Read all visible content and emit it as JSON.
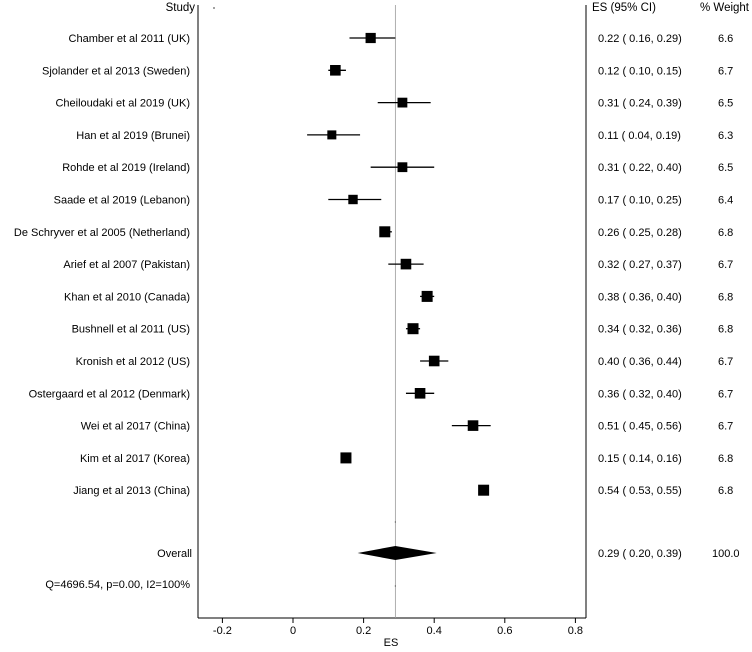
{
  "chart_data": {
    "type": "forest",
    "xlabel": "ES",
    "xlim": [
      -0.25,
      0.8
    ],
    "xticks": [
      -0.2,
      0,
      0.2,
      0.4,
      0.6,
      0.8
    ],
    "xtick_labels": [
      "-0.2",
      "0",
      "0.2",
      "0.4",
      "0.6",
      "0.8"
    ],
    "headers": {
      "study": "Study",
      "es": "ES (95% CI)",
      "weight": "% Weight"
    },
    "reference_line": 0.29,
    "studies": [
      {
        "label": "Chamber et al 2011 (UK)",
        "es": 0.22,
        "lo": 0.16,
        "hi": 0.29,
        "es_text": "0.22",
        "lo_text": "0.16",
        "hi_text": "0.29",
        "weight": 6.6,
        "weight_text": "6.6"
      },
      {
        "label": "Sjolander et al 2013 (Sweden)",
        "es": 0.12,
        "lo": 0.1,
        "hi": 0.15,
        "es_text": "0.12",
        "lo_text": "0.10",
        "hi_text": "0.15",
        "weight": 6.7,
        "weight_text": "6.7"
      },
      {
        "label": "Cheiloudaki et al 2019 (UK)",
        "es": 0.31,
        "lo": 0.24,
        "hi": 0.39,
        "es_text": "0.31",
        "lo_text": "0.24",
        "hi_text": "0.39",
        "weight": 6.5,
        "weight_text": "6.5"
      },
      {
        "label": "Han et al 2019 (Brunei)",
        "es": 0.11,
        "lo": 0.04,
        "hi": 0.19,
        "es_text": "0.11",
        "lo_text": "0.04",
        "hi_text": "0.19",
        "weight": 6.3,
        "weight_text": "6.3"
      },
      {
        "label": "Rohde et al 2019 (Ireland)",
        "es": 0.31,
        "lo": 0.22,
        "hi": 0.4,
        "es_text": "0.31",
        "lo_text": "0.22",
        "hi_text": "0.40",
        "weight": 6.5,
        "weight_text": "6.5"
      },
      {
        "label": "Saade et al 2019 (Lebanon)",
        "es": 0.17,
        "lo": 0.1,
        "hi": 0.25,
        "es_text": "0.17",
        "lo_text": "0.10",
        "hi_text": "0.25",
        "weight": 6.4,
        "weight_text": "6.4"
      },
      {
        "label": "De Schryver et al 2005 (Netherland)",
        "es": 0.26,
        "lo": 0.25,
        "hi": 0.28,
        "es_text": "0.26",
        "lo_text": "0.25",
        "hi_text": "0.28",
        "weight": 6.8,
        "weight_text": "6.8"
      },
      {
        "label": "Arief et al 2007 (Pakistan)",
        "es": 0.32,
        "lo": 0.27,
        "hi": 0.37,
        "es_text": "0.32",
        "lo_text": "0.27",
        "hi_text": "0.37",
        "weight": 6.7,
        "weight_text": "6.7"
      },
      {
        "label": "Khan et al 2010 (Canada)",
        "es": 0.38,
        "lo": 0.36,
        "hi": 0.4,
        "es_text": "0.38",
        "lo_text": "0.36",
        "hi_text": "0.40",
        "weight": 6.8,
        "weight_text": "6.8"
      },
      {
        "label": "Bushnell et al 2011 (US)",
        "es": 0.34,
        "lo": 0.32,
        "hi": 0.36,
        "es_text": "0.34",
        "lo_text": "0.32",
        "hi_text": "0.36",
        "weight": 6.8,
        "weight_text": "6.8"
      },
      {
        "label": "Kronish et al 2012 (US)",
        "es": 0.4,
        "lo": 0.36,
        "hi": 0.44,
        "es_text": "0.40",
        "lo_text": "0.36",
        "hi_text": "0.44",
        "weight": 6.7,
        "weight_text": "6.7"
      },
      {
        "label": "Ostergaard et al 2012 (Denmark)",
        "es": 0.36,
        "lo": 0.32,
        "hi": 0.4,
        "es_text": "0.36",
        "lo_text": "0.32",
        "hi_text": "0.40",
        "weight": 6.7,
        "weight_text": "6.7"
      },
      {
        "label": "Wei et al 2017 (China)",
        "es": 0.51,
        "lo": 0.45,
        "hi": 0.56,
        "es_text": "0.51",
        "lo_text": "0.45",
        "hi_text": "0.56",
        "weight": 6.7,
        "weight_text": "6.7"
      },
      {
        "label": "Kim et al 2017 (Korea)",
        "es": 0.15,
        "lo": 0.14,
        "hi": 0.16,
        "es_text": "0.15",
        "lo_text": "0.14",
        "hi_text": "0.16",
        "weight": 6.8,
        "weight_text": "6.8"
      },
      {
        "label": "Jiang et al 2013 (China)",
        "es": 0.54,
        "lo": 0.53,
        "hi": 0.55,
        "es_text": "0.54",
        "lo_text": "0.53",
        "hi_text": "0.55",
        "weight": 6.8,
        "weight_text": "6.8"
      }
    ],
    "overall": {
      "label": "Overall",
      "es": 0.29,
      "lo": 0.2,
      "hi": 0.39,
      "es_text": "0.29",
      "lo_text": "0.20",
      "hi_text": "0.39",
      "weight_text": "100.0"
    },
    "heterogeneity": "Q=4696.54, p=0.00, I2=100%"
  }
}
